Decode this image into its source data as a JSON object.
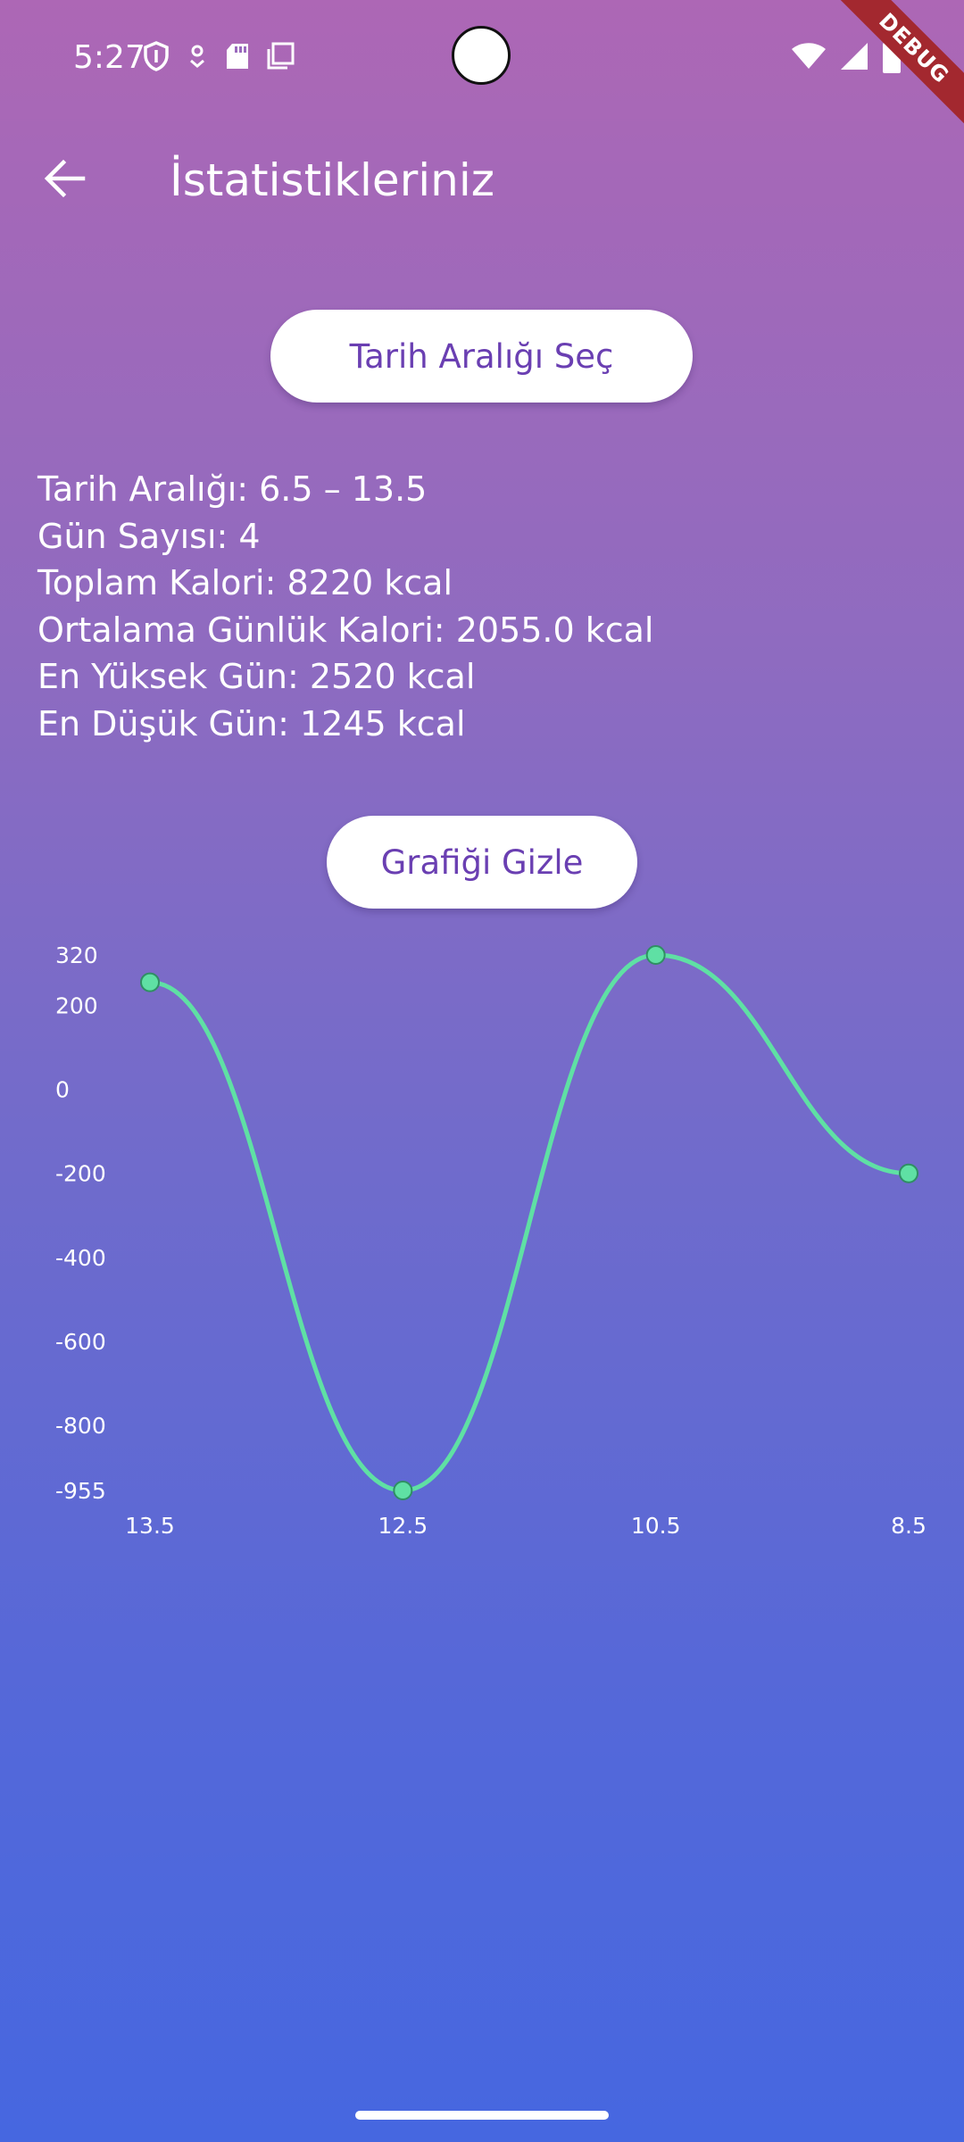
{
  "status_bar": {
    "time": "5:27",
    "left_icons": [
      "shield-icon",
      "location-pin-icon",
      "sd-card-icon",
      "copy-icon"
    ],
    "right_icons": [
      "wifi-icon",
      "signal-icon",
      "battery-icon"
    ]
  },
  "debug_banner": "DEBUG",
  "app_bar": {
    "title": "İstatistikleriniz",
    "back_icon": "arrow-back-icon"
  },
  "buttons": {
    "date_range": "Tarih Aralığı Seç",
    "toggle_chart": "Grafiği Gizle"
  },
  "stats": {
    "date_range": "Tarih Aralığı: 6.5 – 13.5",
    "day_count": "Gün Sayısı: 4",
    "total_calories": "Toplam Kalori: 8220 kcal",
    "average_daily": "Ortalama Günlük Kalori: 2055.0 kcal",
    "highest_day": "En Yüksek Gün: 2520 kcal",
    "lowest_day": "En Düşük Gün: 1245 kcal"
  },
  "chart_data": {
    "type": "line",
    "x": [
      "13.5",
      "12.5",
      "10.5",
      "8.5"
    ],
    "series": [
      {
        "values": [
          255,
          -955,
          320,
          -200
        ],
        "color": "#5fe0a4"
      }
    ],
    "y_ticks": [
      320,
      200,
      0,
      -200,
      -400,
      -600,
      -800,
      -955
    ],
    "ylim": [
      -955,
      320
    ],
    "xlabel": "",
    "ylabel": "",
    "title": "",
    "grid": false
  },
  "colors": {
    "gradient_top": "#ad67b5",
    "gradient_bottom": "#4667e0",
    "button_text": "#6a3fb2",
    "line": "#5fe0a4",
    "debug_ribbon": "#a3282f"
  }
}
